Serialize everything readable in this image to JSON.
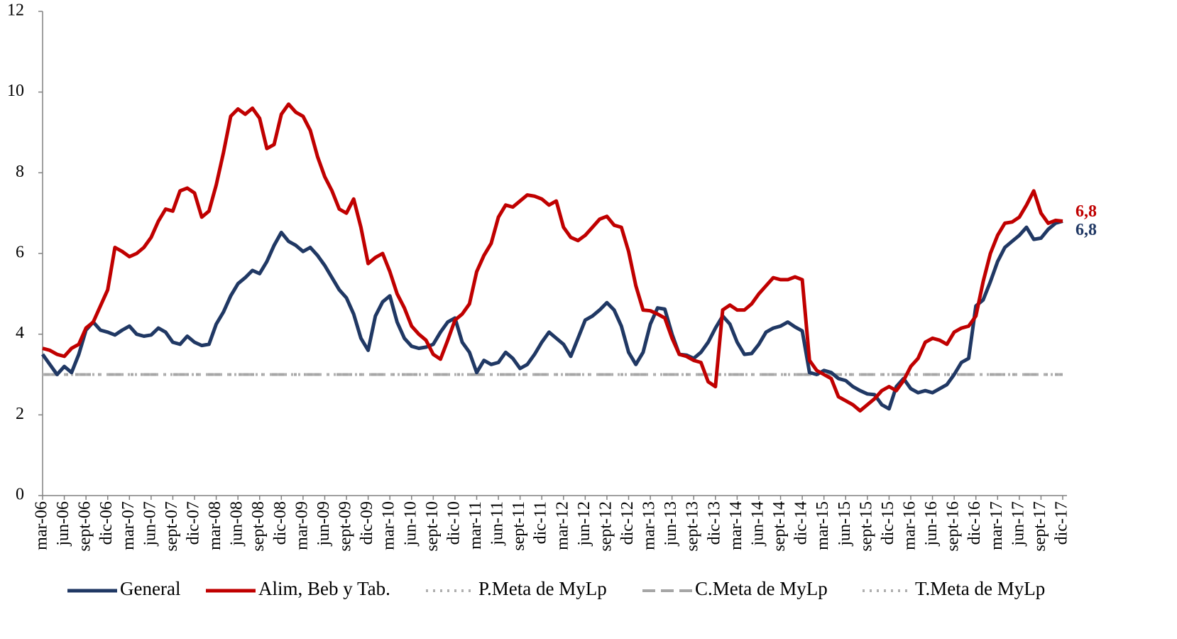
{
  "chart_data": {
    "type": "line",
    "categories": [
      "mar-06",
      null,
      null,
      "jun-06",
      null,
      null,
      "sept-06",
      null,
      null,
      "dic-06",
      null,
      null,
      "mar-07",
      null,
      null,
      "jun-07",
      null,
      null,
      "sept-07",
      null,
      null,
      "dic-07",
      null,
      null,
      "mar-08",
      null,
      null,
      "jun-08",
      null,
      null,
      "sept-08",
      null,
      null,
      "dic-08",
      null,
      null,
      "mar-09",
      null,
      null,
      "jun-09",
      null,
      null,
      "sept-09",
      null,
      null,
      "dic-09",
      null,
      null,
      "mar-10",
      null,
      null,
      "jun-10",
      null,
      null,
      "sept-10",
      null,
      null,
      "dic-10",
      null,
      null,
      "mar-11",
      null,
      null,
      "jun-11",
      null,
      null,
      "sept-11",
      null,
      null,
      "dic-11",
      null,
      null,
      "mar-12",
      null,
      null,
      "jun-12",
      null,
      null,
      "sept-12",
      null,
      null,
      "dic-12",
      null,
      null,
      "mar-13",
      null,
      null,
      "jun-13",
      null,
      null,
      "sept-13",
      null,
      null,
      "dic-13",
      null,
      null,
      "mar-14",
      null,
      null,
      "jun-14",
      null,
      null,
      "sept-14",
      null,
      null,
      "dic-14",
      null,
      null,
      "mar-15",
      null,
      null,
      "jun-15",
      null,
      null,
      "sept-15",
      null,
      null,
      "dic-15",
      null,
      null,
      "mar-16",
      null,
      null,
      "jun-16",
      null,
      null,
      "sept-16",
      null,
      null,
      "dic-16",
      null,
      null,
      "mar-17",
      null,
      null,
      "jun-17",
      null,
      null,
      "sept-17",
      null,
      null,
      "dic-17"
    ],
    "series": [
      {
        "name": "General",
        "color": "#203864",
        "dash": "solid",
        "values": [
          3.5,
          3.25,
          3.0,
          3.2,
          3.05,
          3.5,
          4.1,
          4.3,
          4.1,
          4.05,
          3.98,
          4.1,
          4.2,
          4.0,
          3.95,
          3.98,
          4.15,
          4.05,
          3.8,
          3.75,
          3.95,
          3.8,
          3.72,
          3.75,
          4.25,
          4.55,
          4.95,
          5.25,
          5.4,
          5.58,
          5.5,
          5.8,
          6.2,
          6.52,
          6.3,
          6.2,
          6.05,
          6.15,
          5.95,
          5.7,
          5.4,
          5.1,
          4.9,
          4.5,
          3.9,
          3.6,
          4.45,
          4.8,
          4.95,
          4.3,
          3.9,
          3.7,
          3.65,
          3.68,
          3.75,
          4.05,
          4.3,
          4.4,
          3.8,
          3.55,
          3.05,
          3.35,
          3.25,
          3.3,
          3.55,
          3.4,
          3.15,
          3.25,
          3.5,
          3.8,
          4.05,
          3.9,
          3.75,
          3.45,
          3.9,
          4.35,
          4.45,
          4.6,
          4.78,
          4.6,
          4.2,
          3.55,
          3.25,
          3.55,
          4.25,
          4.65,
          4.62,
          4.0,
          3.5,
          3.48,
          3.4,
          3.55,
          3.8,
          4.15,
          4.45,
          4.25,
          3.8,
          3.5,
          3.52,
          3.75,
          4.05,
          4.15,
          4.2,
          4.3,
          4.18,
          4.08,
          3.05,
          3.0,
          3.1,
          3.05,
          2.9,
          2.85,
          2.7,
          2.6,
          2.52,
          2.5,
          2.25,
          2.15,
          2.7,
          2.9,
          2.65,
          2.55,
          2.6,
          2.55,
          2.65,
          2.75,
          3.0,
          3.3,
          3.4,
          4.7,
          4.85,
          5.3,
          5.8,
          6.15,
          6.3,
          6.45,
          6.65,
          6.35,
          6.38,
          6.6,
          6.75,
          6.8
        ],
        "value_labels": [
          null,
          null,
          null,
          null,
          null,
          null,
          null,
          null,
          null,
          null,
          null,
          null,
          null,
          null,
          null,
          null,
          null,
          null,
          null,
          null,
          null,
          null,
          null,
          null,
          null,
          null,
          null,
          null,
          null,
          null,
          null,
          null,
          null,
          null,
          null,
          null,
          null,
          null,
          null,
          null,
          null,
          null,
          null,
          null,
          null,
          null,
          null,
          null,
          null,
          null,
          null,
          null,
          null,
          null,
          null,
          null,
          null,
          null,
          null,
          null,
          null,
          null,
          null,
          null,
          null,
          null,
          null,
          null,
          null,
          null,
          null,
          null,
          null,
          null,
          null,
          null,
          null,
          null,
          null,
          null,
          null,
          null,
          null,
          null,
          null,
          null,
          null,
          null,
          null,
          null,
          null,
          null,
          null,
          null,
          null,
          null,
          null,
          null,
          null,
          null,
          null,
          null,
          null,
          null,
          null,
          null,
          null,
          null,
          null,
          null,
          null,
          null,
          null,
          null,
          null,
          null,
          null,
          null,
          null,
          null,
          null,
          null,
          null,
          null,
          null,
          null,
          null,
          null,
          null,
          null,
          null,
          null,
          null,
          null,
          null,
          null,
          null,
          null,
          null,
          null,
          null,
          "6,8"
        ]
      },
      {
        "name": "Alim, Beb y Tab.",
        "color": "#c00000",
        "dash": "solid",
        "values": [
          3.65,
          3.6,
          3.5,
          3.45,
          3.65,
          3.75,
          4.15,
          4.3,
          4.7,
          5.1,
          6.15,
          6.05,
          5.92,
          6.0,
          6.15,
          6.4,
          6.8,
          7.1,
          7.05,
          7.55,
          7.62,
          7.5,
          6.9,
          7.05,
          7.7,
          8.5,
          9.4,
          9.58,
          9.45,
          9.6,
          9.35,
          8.6,
          8.7,
          9.45,
          9.7,
          9.5,
          9.4,
          9.05,
          8.4,
          7.9,
          7.55,
          7.1,
          7.0,
          7.35,
          6.65,
          5.75,
          5.9,
          6.0,
          5.55,
          5.0,
          4.65,
          4.2,
          4.0,
          3.85,
          3.5,
          3.38,
          3.85,
          4.35,
          4.5,
          4.75,
          5.55,
          5.95,
          6.25,
          6.9,
          7.2,
          7.15,
          7.3,
          7.45,
          7.42,
          7.35,
          7.2,
          7.3,
          6.65,
          6.4,
          6.32,
          6.45,
          6.65,
          6.85,
          6.92,
          6.7,
          6.65,
          6.05,
          5.2,
          4.6,
          4.58,
          4.5,
          4.4,
          3.9,
          3.5,
          3.45,
          3.35,
          3.3,
          2.82,
          2.7,
          4.6,
          4.72,
          4.6,
          4.6,
          4.75,
          5.0,
          5.2,
          5.4,
          5.35,
          5.35,
          5.42,
          5.35,
          3.35,
          3.1,
          3.0,
          2.9,
          2.45,
          2.35,
          2.25,
          2.1,
          2.25,
          2.4,
          2.6,
          2.7,
          2.6,
          2.85,
          3.2,
          3.4,
          3.8,
          3.9,
          3.85,
          3.75,
          4.05,
          4.15,
          4.2,
          4.45,
          5.3,
          6.0,
          6.45,
          6.75,
          6.78,
          6.9,
          7.2,
          7.55,
          7.0,
          6.75,
          6.82,
          6.8
        ],
        "value_labels": [
          null,
          null,
          null,
          null,
          null,
          null,
          null,
          null,
          null,
          null,
          null,
          null,
          null,
          null,
          null,
          null,
          null,
          null,
          null,
          null,
          null,
          null,
          null,
          null,
          null,
          null,
          null,
          null,
          null,
          null,
          null,
          null,
          null,
          null,
          null,
          null,
          null,
          null,
          null,
          null,
          null,
          null,
          null,
          null,
          null,
          null,
          null,
          null,
          null,
          null,
          null,
          null,
          null,
          null,
          null,
          null,
          null,
          null,
          null,
          null,
          null,
          null,
          null,
          null,
          null,
          null,
          null,
          null,
          null,
          null,
          null,
          null,
          null,
          null,
          null,
          null,
          null,
          null,
          null,
          null,
          null,
          null,
          null,
          null,
          null,
          null,
          null,
          null,
          null,
          null,
          null,
          null,
          null,
          null,
          null,
          null,
          null,
          null,
          null,
          null,
          null,
          null,
          null,
          null,
          null,
          null,
          null,
          null,
          null,
          null,
          null,
          null,
          null,
          null,
          null,
          null,
          null,
          null,
          null,
          null,
          null,
          null,
          null,
          null,
          null,
          null,
          null,
          null,
          null,
          null,
          null,
          null,
          null,
          null,
          null,
          null,
          null,
          null,
          null,
          null,
          null,
          "6,8"
        ]
      },
      {
        "name": "P.Meta de MyLp",
        "color": "#b0b0b0",
        "dash": "dotted",
        "values": [
          3,
          3,
          3,
          3,
          3,
          3,
          3,
          3,
          3,
          3,
          3,
          3,
          3,
          3,
          3,
          3,
          3,
          3,
          3,
          3,
          3,
          3,
          3,
          3,
          3,
          3,
          3,
          3,
          3,
          3,
          3,
          3,
          3,
          3,
          3,
          3,
          3,
          3,
          3,
          3,
          3,
          3,
          3,
          3,
          3,
          3,
          3,
          3,
          3,
          3,
          3,
          3,
          3,
          3,
          3,
          3,
          3,
          3,
          3,
          3,
          3,
          3,
          3,
          3,
          3,
          3,
          3,
          3,
          3,
          3,
          3,
          3,
          3,
          3,
          3,
          3,
          3,
          3,
          3,
          3,
          3,
          3,
          3,
          3,
          3,
          3,
          3,
          3,
          3,
          3,
          3,
          3,
          3,
          3,
          3,
          3,
          3,
          3,
          3,
          3,
          3,
          3,
          3,
          3,
          3,
          3,
          3,
          3,
          3,
          3,
          3,
          3,
          3,
          3,
          3,
          3,
          3,
          3,
          3,
          3,
          3,
          3,
          3,
          3,
          3,
          3,
          3,
          3,
          3,
          3,
          3,
          3,
          3,
          3,
          3,
          3,
          3,
          3,
          3,
          3,
          3,
          3
        ]
      },
      {
        "name": "C.Meta de MyLp",
        "color": "#a6a6a6",
        "dash": "dashed",
        "values": [
          3,
          3,
          3,
          3,
          3,
          3,
          3,
          3,
          3,
          3,
          3,
          3,
          3,
          3,
          3,
          3,
          3,
          3,
          3,
          3,
          3,
          3,
          3,
          3,
          3,
          3,
          3,
          3,
          3,
          3,
          3,
          3,
          3,
          3,
          3,
          3,
          3,
          3,
          3,
          3,
          3,
          3,
          3,
          3,
          3,
          3,
          3,
          3,
          3,
          3,
          3,
          3,
          3,
          3,
          3,
          3,
          3,
          3,
          3,
          3,
          3,
          3,
          3,
          3,
          3,
          3,
          3,
          3,
          3,
          3,
          3,
          3,
          3,
          3,
          3,
          3,
          3,
          3,
          3,
          3,
          3,
          3,
          3,
          3,
          3,
          3,
          3,
          3,
          3,
          3,
          3,
          3,
          3,
          3,
          3,
          3,
          3,
          3,
          3,
          3,
          3,
          3,
          3,
          3,
          3,
          3,
          3,
          3,
          3,
          3,
          3,
          3,
          3,
          3,
          3,
          3,
          3,
          3,
          3,
          3,
          3,
          3,
          3,
          3,
          3,
          3,
          3,
          3,
          3,
          3,
          3,
          3,
          3,
          3,
          3,
          3,
          3,
          3,
          3,
          3,
          3,
          3
        ]
      },
      {
        "name": "T.Meta de MyLp",
        "color": "#b0b0b0",
        "dash": "dotted",
        "values": [
          3,
          3,
          3,
          3,
          3,
          3,
          3,
          3,
          3,
          3,
          3,
          3,
          3,
          3,
          3,
          3,
          3,
          3,
          3,
          3,
          3,
          3,
          3,
          3,
          3,
          3,
          3,
          3,
          3,
          3,
          3,
          3,
          3,
          3,
          3,
          3,
          3,
          3,
          3,
          3,
          3,
          3,
          3,
          3,
          3,
          3,
          3,
          3,
          3,
          3,
          3,
          3,
          3,
          3,
          3,
          3,
          3,
          3,
          3,
          3,
          3,
          3,
          3,
          3,
          3,
          3,
          3,
          3,
          3,
          3,
          3,
          3,
          3,
          3,
          3,
          3,
          3,
          3,
          3,
          3,
          3,
          3,
          3,
          3,
          3,
          3,
          3,
          3,
          3,
          3,
          3,
          3,
          3,
          3,
          3,
          3,
          3,
          3,
          3,
          3,
          3,
          3,
          3,
          3,
          3,
          3,
          3,
          3,
          3,
          3,
          3,
          3,
          3,
          3,
          3,
          3,
          3,
          3,
          3,
          3,
          3,
          3,
          3,
          3,
          3,
          3,
          3,
          3,
          3,
          3,
          3,
          3,
          3,
          3,
          3,
          3,
          3,
          3,
          3,
          3,
          3,
          3
        ]
      }
    ],
    "ylim": [
      0,
      12
    ],
    "yticks": [
      0,
      2,
      4,
      6,
      8,
      10,
      12
    ],
    "grid": false,
    "legend": "bottom"
  }
}
